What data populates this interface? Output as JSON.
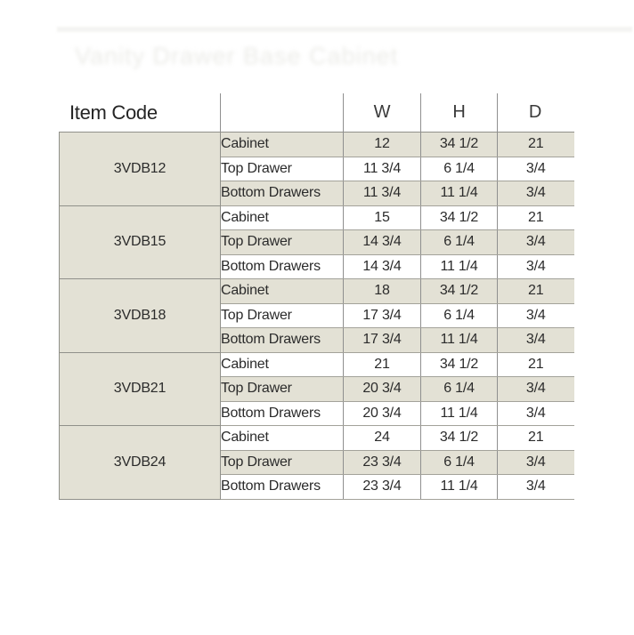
{
  "page": {
    "background": "#ffffff"
  },
  "watermark": {
    "legible": false,
    "approx_text": "Vanity Drawer Base Cabinet"
  },
  "colors": {
    "stripe": "#e3e1d5",
    "grid_line": "#90908a",
    "text": "#2b2b2b"
  },
  "table": {
    "header": {
      "item_code_label": "Item Code",
      "columns": [
        "W",
        "H",
        "D"
      ]
    },
    "row_labels": [
      "Cabinet",
      "Top Drawer",
      "Bottom Drawers"
    ],
    "groups": [
      {
        "item_code": "3VDB12",
        "rows": [
          {
            "label": "Cabinet",
            "w": "12",
            "h": "34 1/2",
            "d": "21",
            "shaded": true
          },
          {
            "label": "Top Drawer",
            "w": "11 3/4",
            "h": "6 1/4",
            "d": "3/4",
            "shaded": false
          },
          {
            "label": "Bottom Drawers",
            "w": "11 3/4",
            "h": "11 1/4",
            "d": "3/4",
            "shaded": true
          }
        ]
      },
      {
        "item_code": "3VDB15",
        "rows": [
          {
            "label": "Cabinet",
            "w": "15",
            "h": "34 1/2",
            "d": "21",
            "shaded": false
          },
          {
            "label": "Top Drawer",
            "w": "14 3/4",
            "h": "6 1/4",
            "d": "3/4",
            "shaded": true
          },
          {
            "label": "Bottom Drawers",
            "w": "14 3/4",
            "h": "11 1/4",
            "d": "3/4",
            "shaded": false
          }
        ]
      },
      {
        "item_code": "3VDB18",
        "rows": [
          {
            "label": "Cabinet",
            "w": "18",
            "h": "34 1/2",
            "d": "21",
            "shaded": true
          },
          {
            "label": "Top Drawer",
            "w": "17 3/4",
            "h": "6 1/4",
            "d": "3/4",
            "shaded": false
          },
          {
            "label": "Bottom Drawers",
            "w": "17 3/4",
            "h": "11 1/4",
            "d": "3/4",
            "shaded": true
          }
        ]
      },
      {
        "item_code": "3VDB21",
        "rows": [
          {
            "label": "Cabinet",
            "w": "21",
            "h": "34 1/2",
            "d": "21",
            "shaded": false
          },
          {
            "label": "Top Drawer",
            "w": "20 3/4",
            "h": "6 1/4",
            "d": "3/4",
            "shaded": true
          },
          {
            "label": "Bottom Drawers",
            "w": "20 3/4",
            "h": "11 1/4",
            "d": "3/4",
            "shaded": false
          }
        ]
      },
      {
        "item_code": "3VDB24",
        "rows": [
          {
            "label": "Cabinet",
            "w": "24",
            "h": "34 1/2",
            "d": "21",
            "shaded": false
          },
          {
            "label": "Top Drawer",
            "w": "23 3/4",
            "h": "6 1/4",
            "d": "3/4",
            "shaded": true
          },
          {
            "label": "Bottom Drawers",
            "w": "23 3/4",
            "h": "11 1/4",
            "d": "3/4",
            "shaded": false
          }
        ]
      }
    ]
  }
}
